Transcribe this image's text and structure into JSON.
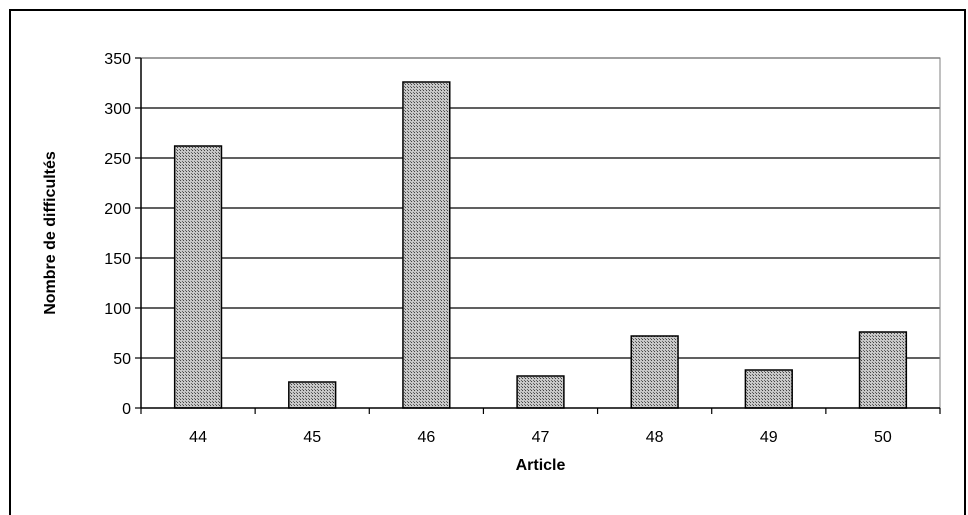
{
  "chart_data": {
    "type": "bar",
    "title": "",
    "xlabel": "Article",
    "ylabel": "Nombre de difficultés",
    "categories": [
      "44",
      "45",
      "46",
      "47",
      "48",
      "49",
      "50"
    ],
    "values": [
      262,
      26,
      326,
      32,
      72,
      38,
      76
    ],
    "ylim": [
      0,
      350
    ],
    "yticks": [
      0,
      50,
      100,
      150,
      200,
      250,
      300,
      350
    ],
    "grid": true,
    "legend": "none",
    "bar_color": "#9a9a9a",
    "bar_pattern": "crosshatch"
  }
}
